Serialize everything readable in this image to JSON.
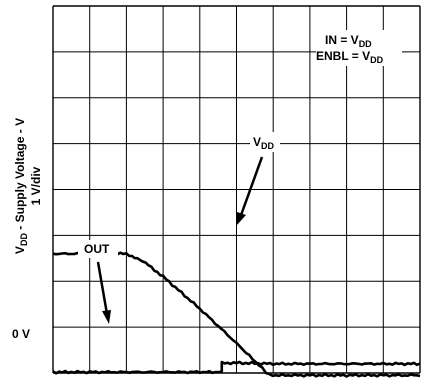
{
  "chart_data": {
    "type": "line",
    "ylabel": {
      "prefix": "V",
      "sub": "DD",
      "rest": " - Supply Voltage - V",
      "line2": "1 V/div"
    },
    "zero_label": "0 V",
    "grid": {
      "shown": true,
      "x_divisions": 10,
      "y_divisions": 8
    },
    "ylim": [
      0,
      8
    ],
    "xlim": [
      0,
      10
    ],
    "y_unit": "div",
    "x_unit": "div",
    "series": [
      {
        "name": "VDD",
        "points": [
          [
            0,
            2.5
          ],
          [
            1,
            2.5
          ],
          [
            1.5,
            2.5
          ],
          [
            2,
            2.5
          ],
          [
            2.3,
            2.4
          ],
          [
            2.6,
            2.25
          ],
          [
            3,
            2.0
          ],
          [
            4,
            1.3
          ],
          [
            5,
            0.55
          ],
          [
            5.7,
            0.0
          ],
          [
            5.9,
            -0.15
          ],
          [
            6.5,
            -0.15
          ],
          [
            8,
            -0.15
          ],
          [
            10,
            -0.15
          ]
        ]
      },
      {
        "name": "OUT",
        "points": [
          [
            0,
            -0.08
          ],
          [
            1,
            -0.08
          ],
          [
            2,
            -0.08
          ],
          [
            3,
            -0.08
          ],
          [
            4,
            -0.08
          ],
          [
            4.6,
            -0.08
          ],
          [
            4.6,
            0.12
          ],
          [
            5,
            0.12
          ],
          [
            6,
            0.1
          ],
          [
            7,
            0.1
          ],
          [
            8,
            0.1
          ],
          [
            9,
            0.1
          ],
          [
            10,
            0.1
          ]
        ]
      }
    ],
    "annotations": {
      "in_line": {
        "main": "IN = V",
        "sub": "DD"
      },
      "enbl_line": {
        "main": "ENBL = V",
        "sub": "DD"
      },
      "vdd_arrow": {
        "main": "V",
        "sub": "DD"
      },
      "out_arrow": "OUT"
    }
  }
}
